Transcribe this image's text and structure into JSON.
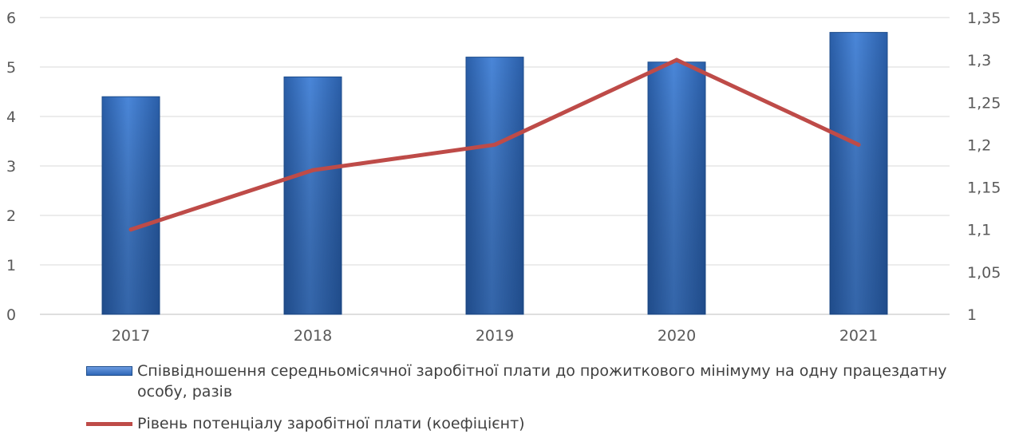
{
  "chart_data": {
    "type": "bar",
    "categories": [
      "2017",
      "2018",
      "2019",
      "2020",
      "2021"
    ],
    "series": [
      {
        "name": "Співвідношення  середньомісячної заробітної плати до прожиткового мінімуму на одну працездатну особу, разів",
        "type": "bar",
        "axis": "left",
        "values": [
          4.4,
          4.8,
          5.2,
          5.1,
          5.7
        ],
        "color": "#3a74c8"
      },
      {
        "name": "Рівень потенціалу заробітної плати (коефіцієнт)",
        "type": "line",
        "axis": "right",
        "values": [
          1.1,
          1.17,
          1.2,
          1.3,
          1.2
        ],
        "color": "#be4b48"
      }
    ],
    "y_left": {
      "ticks": [
        "0",
        "1",
        "2",
        "3",
        "4",
        "5",
        "6"
      ],
      "ylim": [
        0,
        6
      ]
    },
    "y_right": {
      "ticks": [
        "1",
        "1,05",
        "1,1",
        "1,15",
        "1,2",
        "1,25",
        "1,3",
        "1,35"
      ],
      "ylim": [
        1,
        1.35
      ]
    },
    "grid": true,
    "legend_position": "bottom",
    "title": "",
    "xlabel": "",
    "ylabel": ""
  }
}
